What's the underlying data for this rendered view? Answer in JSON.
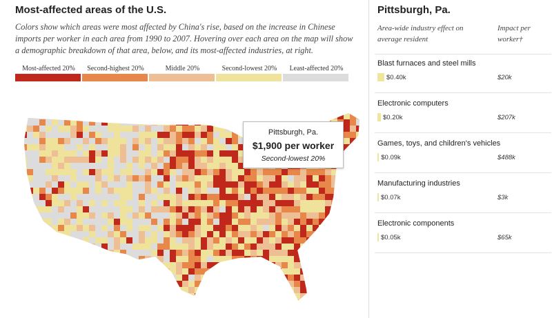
{
  "header": {
    "title": "Most-affected areas of the U.S.",
    "description": "Colors show which areas were most affected by China's rise, based on the increase in Chinese imports per worker in each area from 1990 to 2007. Hovering over each area on the map will show a demographic breakdown of that area, below, and its most-affected industries, at right."
  },
  "legend": [
    {
      "label": "Most-affected 20%",
      "color": "#c0281b"
    },
    {
      "label": "Second-highest 20%",
      "color": "#e8874a"
    },
    {
      "label": "Middle 20%",
      "color": "#eebf95"
    },
    {
      "label": "Second-lowest 20%",
      "color": "#efe29b"
    },
    {
      "label": "Least-affected 20%",
      "color": "#dcdcdc"
    }
  ],
  "tooltip": {
    "area": "Pittsburgh, Pa.",
    "amount": "$1,900 per worker",
    "group": "Second-lowest 20%"
  },
  "panel": {
    "title": "Pittsburgh, Pa.",
    "column_effect": "Area-wide industry effect on average resident",
    "column_impact": "Impact per worker†",
    "industries": [
      {
        "name": "Blast furnaces and steel mills",
        "effect": 400,
        "effect_label": "$0.40k",
        "impact": "$20k"
      },
      {
        "name": "Electronic computers",
        "effect": 200,
        "effect_label": "$0.20k",
        "impact": "$207k"
      },
      {
        "name": "Games, toys, and children's vehicles",
        "effect": 90,
        "effect_label": "$0.09k",
        "impact": "$488k"
      },
      {
        "name": "Manufacturing industries",
        "effect": 70,
        "effect_label": "$0.07k",
        "impact": "$3k"
      },
      {
        "name": "Electronic components",
        "effect": 50,
        "effect_label": "$0.05k",
        "impact": "$65k"
      }
    ]
  }
}
